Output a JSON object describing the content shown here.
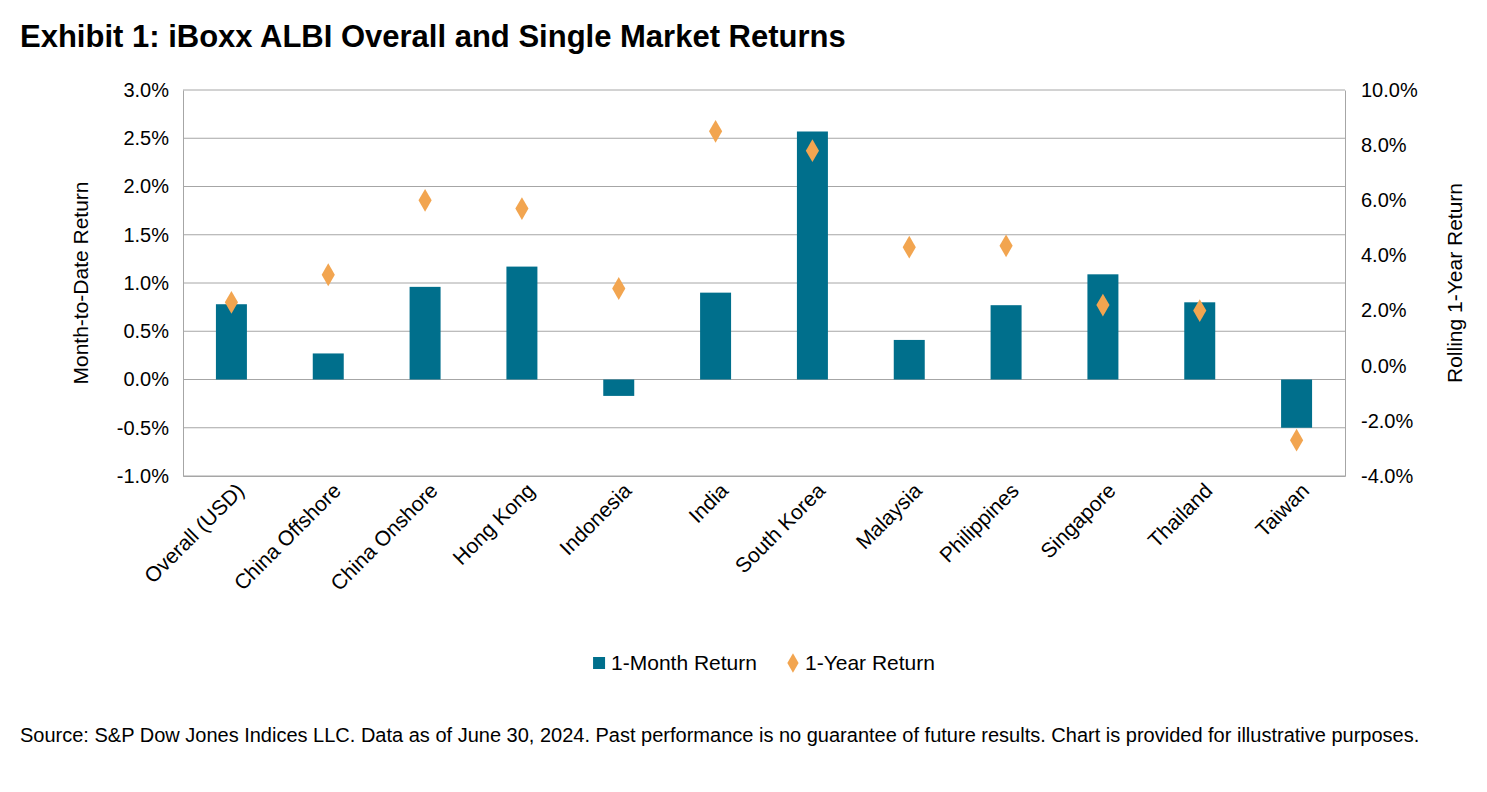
{
  "chart_data": {
    "type": "bar",
    "title": "Exhibit 1: iBoxx ALBI Overall and Single Market Returns",
    "y_label": "Month-to-Date Return",
    "y2_label": "Rolling 1-Year Return",
    "source": "Source: S&P Dow Jones Indices LLC.  Data as of June 30, 2024.  Past performance is no guarantee of future results.  Chart is provided for illustrative purposes.",
    "categories": [
      "Overall (USD)",
      "China Offshore",
      "China Onshore",
      "Hong Kong",
      "Indonesia",
      "India",
      "South Korea",
      "Malaysia",
      "Philippines",
      "Singapore",
      "Thailand",
      "Taiwan"
    ],
    "series": [
      {
        "name": "1-Month Return",
        "type": "bar",
        "color": "#006f8c",
        "values": [
          0.78,
          0.27,
          0.96,
          1.17,
          -0.17,
          0.9,
          2.57,
          0.41,
          0.77,
          1.09,
          0.8,
          -0.5
        ]
      },
      {
        "name": "1-Year Return",
        "type": "scatter",
        "marker": "diamond",
        "color": "#f2a550",
        "axis": "y2",
        "values": [
          2.3,
          3.3,
          6.0,
          5.7,
          2.8,
          8.5,
          7.8,
          4.3,
          4.35,
          2.2,
          2.0,
          -2.7
        ]
      }
    ],
    "ylim": [
      -1,
      3
    ],
    "yticks": [
      {
        "value": -1,
        "label": "-1.0%"
      },
      {
        "value": -0.5,
        "label": "-0.5%"
      },
      {
        "value": 0,
        "label": "0.0%"
      },
      {
        "value": 0.5,
        "label": "0.5%"
      },
      {
        "value": 1,
        "label": "1.0%"
      },
      {
        "value": 1.5,
        "label": "1.5%"
      },
      {
        "value": 2,
        "label": "2.0%"
      },
      {
        "value": 2.5,
        "label": "2.5%"
      },
      {
        "value": 3,
        "label": "3.0%"
      }
    ],
    "y2lim": [
      -4,
      10
    ],
    "y2ticks": [
      {
        "value": -4,
        "label": "-4.0%"
      },
      {
        "value": -2,
        "label": "-2.0%"
      },
      {
        "value": 0,
        "label": "0.0%"
      },
      {
        "value": 2,
        "label": "2.0%"
      },
      {
        "value": 4,
        "label": "4.0%"
      },
      {
        "value": 6,
        "label": "6.0%"
      },
      {
        "value": 8,
        "label": "8.0%"
      },
      {
        "value": 10,
        "label": "10.0%"
      }
    ],
    "grid": true,
    "legend": "bottom"
  }
}
